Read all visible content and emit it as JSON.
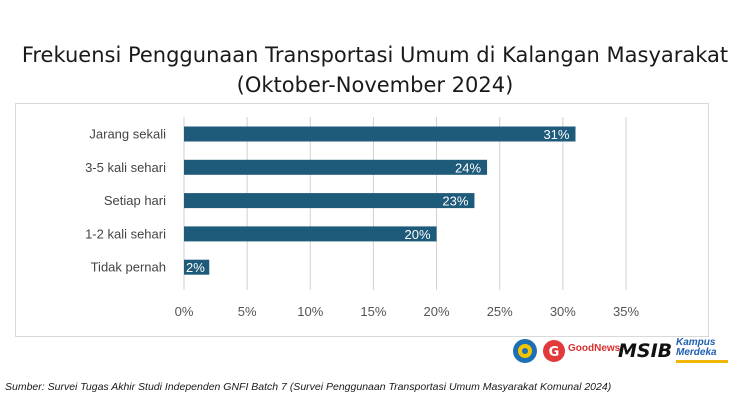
{
  "chart_data": {
    "type": "bar",
    "orientation": "horizontal",
    "title_lines": [
      "Frekuensi Penggunaan Transportasi Umum di Kalangan Masyarakat",
      "(Oktober-November 2024)"
    ],
    "categories": [
      "Jarang sekali",
      "3-5 kali sehari",
      "Setiap hari",
      "1-2 kali sehari",
      "Tidak pernah"
    ],
    "values": [
      31,
      24,
      23,
      20,
      2
    ],
    "data_labels": [
      "31%",
      "24%",
      "23%",
      "20%",
      "2%"
    ],
    "x_ticks": [
      "0%",
      "5%",
      "10%",
      "15%",
      "20%",
      "25%",
      "30%",
      "35%"
    ],
    "xlim": [
      0,
      35
    ],
    "grid": true,
    "bar_color": "#1e5a7a"
  },
  "logos": {
    "goodnews": "GoodNews",
    "msib": "MSIB",
    "kampus_merdeka": [
      "Kampus",
      "Merdeka"
    ]
  },
  "source": "Sumber: Survei Tugas Akhir Studi Independen GNFI Batch 7 (Survei Penggunaan Transportasi Umum Masyarakat Komunal 2024)"
}
